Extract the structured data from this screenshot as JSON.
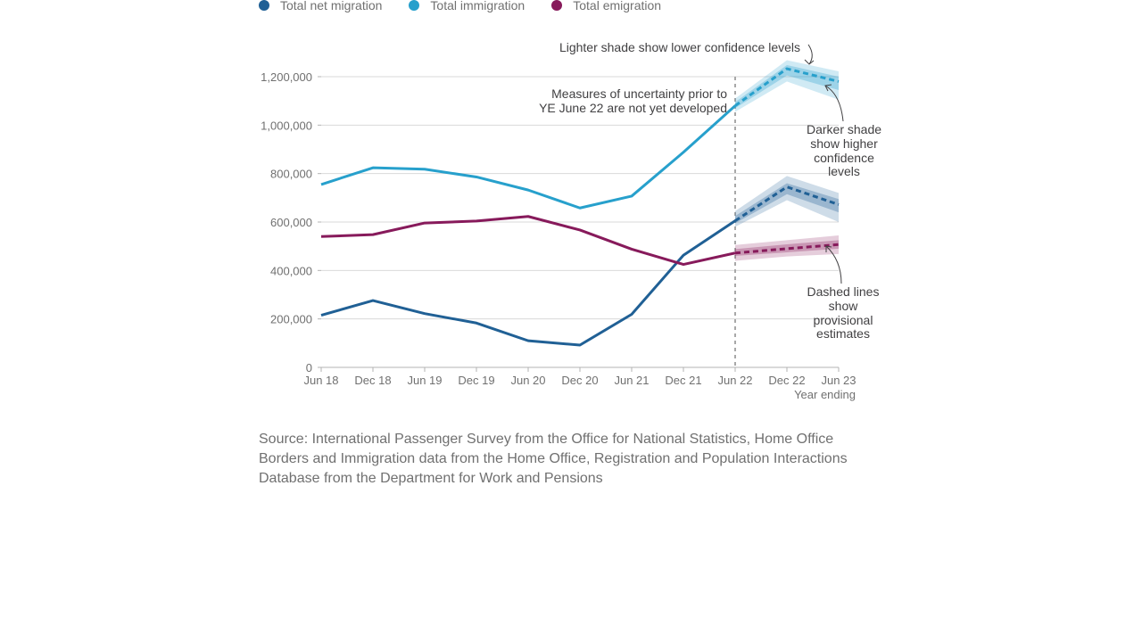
{
  "legend": [
    {
      "label": "Total net migration",
      "color": "#206095"
    },
    {
      "label": "Total immigration",
      "color": "#27a0cc"
    },
    {
      "label": "Total emigration",
      "color": "#871a5b"
    }
  ],
  "annotations": {
    "lighter": "Lighter shade show lower confidence levels",
    "uncertainty_1": "Measures of uncertainty prior to",
    "uncertainty_2": "YE June 22 are not yet developed",
    "darker_1": "Darker shade",
    "darker_2": "show higher",
    "darker_3": "confidence",
    "darker_4": "levels",
    "dashed_1": "Dashed lines",
    "dashed_2": "show",
    "dashed_3": "provisional",
    "dashed_4": "estimates"
  },
  "source": "Source: International Passenger Survey from the Office for National Statistics, Home Office Borders and Immigration data from the Home Office, Registration and Population Interactions Database from the Department for Work and Pensions",
  "chart_data": {
    "type": "line",
    "categories": [
      "Jun 18",
      "Dec 18",
      "Jun 19",
      "Dec 19",
      "Jun 20",
      "Dec 20",
      "Jun 21",
      "Dec 21",
      "Jun 22",
      "Dec 22",
      "Jun 23"
    ],
    "xlabel": "Year ending",
    "ylabel": "",
    "ylim": [
      0,
      1200000
    ],
    "yticks": [
      0,
      200000,
      400000,
      600000,
      800000,
      1000000,
      1200000
    ],
    "ytick_labels": [
      "0",
      "200,000",
      "400,000",
      "600,000",
      "800,000",
      "1,000,000",
      "1,200,000"
    ],
    "provisional_from_index": 8,
    "grid": true,
    "legend_position": "top-left",
    "series": [
      {
        "name": "Total net migration",
        "color": "#206095",
        "values": [
          215000,
          276000,
          222000,
          183000,
          110000,
          92000,
          219000,
          463000,
          605000,
          745000,
          672000
        ],
        "ci_light": {
          "lower": [
            580000,
            690000,
            600000
          ],
          "upper": [
            645000,
            790000,
            720000
          ]
        },
        "ci_dark": {
          "lower": [
            595000,
            715000,
            640000
          ],
          "upper": [
            625000,
            760000,
            695000
          ]
        }
      },
      {
        "name": "Total immigration",
        "color": "#27a0cc",
        "values": [
          755000,
          824000,
          818000,
          786000,
          732000,
          658000,
          707000,
          888000,
          1080000,
          1233000,
          1180000
        ],
        "ci_light": {
          "lower": [
            1055000,
            1180000,
            1105000
          ],
          "upper": [
            1110000,
            1268000,
            1222000
          ]
        },
        "ci_dark": {
          "lower": [
            1070000,
            1205000,
            1145000
          ],
          "upper": [
            1095000,
            1248000,
            1200000
          ]
        }
      },
      {
        "name": "Total emigration",
        "color": "#871a5b",
        "values": [
          540000,
          548000,
          596000,
          604000,
          623000,
          567000,
          488000,
          425000,
          472000,
          490000,
          507000
        ],
        "ci_light": {
          "lower": [
            440000,
            458000,
            468000
          ],
          "upper": [
            505000,
            525000,
            545000
          ]
        },
        "ci_dark": {
          "lower": [
            460000,
            475000,
            490000
          ],
          "upper": [
            488000,
            508000,
            525000
          ]
        }
      }
    ]
  }
}
